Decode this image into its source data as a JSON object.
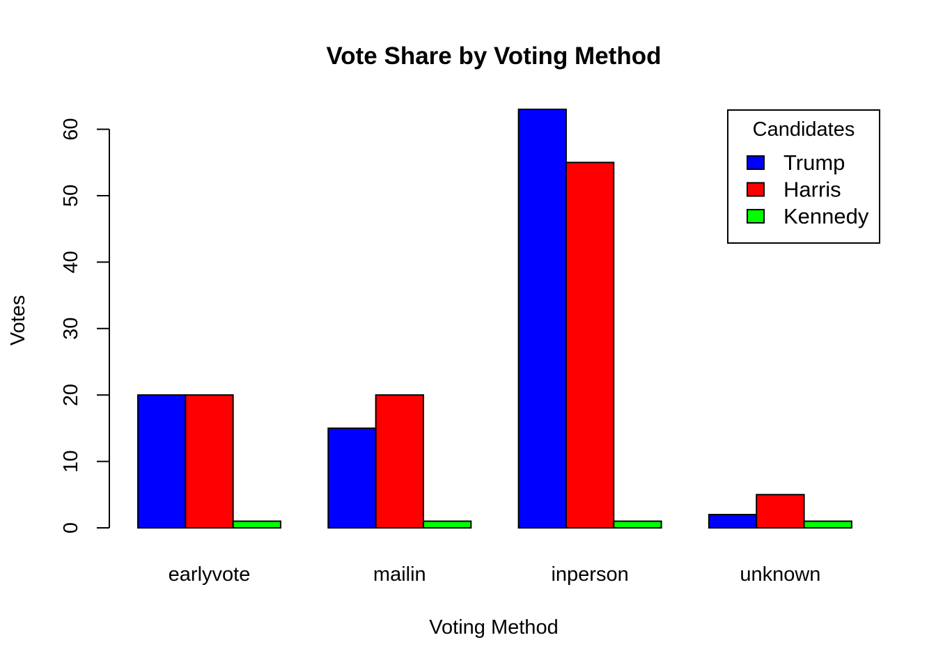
{
  "chart_data": {
    "type": "bar",
    "title": "Vote Share by Voting Method",
    "xlabel": "Voting Method",
    "ylabel": "Votes",
    "categories": [
      "earlyvote",
      "mailin",
      "inperson",
      "unknown"
    ],
    "series": [
      {
        "name": "Trump",
        "color": "#0000ff",
        "values": [
          20,
          15,
          63,
          2
        ]
      },
      {
        "name": "Harris",
        "color": "#ff0000",
        "values": [
          20,
          20,
          55,
          5
        ]
      },
      {
        "name": "Kennedy",
        "color": "#00ff00",
        "values": [
          1,
          1,
          1,
          1
        ]
      }
    ],
    "ylim": [
      0,
      63
    ],
    "y_ticks": [
      0,
      10,
      20,
      30,
      40,
      50,
      60
    ],
    "grid": false,
    "legend": {
      "title": "Candidates",
      "placement": "top-right"
    }
  }
}
